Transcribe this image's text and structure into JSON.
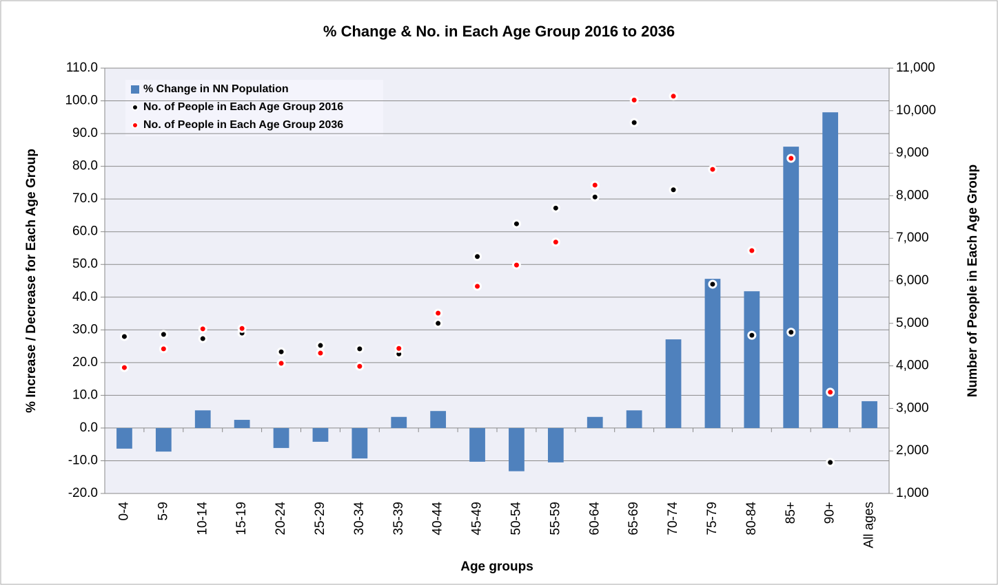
{
  "chart_data": {
    "type": "bar",
    "title": "% Change & No. in Each Age Group 2016 to 2036",
    "x_label": "Age groups",
    "y_label": "% Increase / Decrease for Each Age Group",
    "y2_label": "Number of People in Each Age Group",
    "categories": [
      "0-4",
      "5-9",
      "10-14",
      "15-19",
      "20-24",
      "25-29",
      "30-34",
      "35-39",
      "40-44",
      "45-49",
      "50-54",
      "55-59",
      "60-64",
      "65-69",
      "70-74",
      "75-79",
      "80-84",
      "85+",
      "90+",
      "All ages"
    ],
    "series": [
      {
        "name": "% Change in NN Population",
        "type": "bar",
        "axis": "y",
        "color": "#4f81bd",
        "values": [
          -6.3,
          -7.2,
          5.4,
          2.5,
          -6.1,
          -4.2,
          -9.3,
          3.4,
          5.2,
          -10.3,
          -13.2,
          -10.5,
          3.4,
          5.4,
          27.1,
          45.6,
          41.8,
          86.0,
          96.5,
          8.2
        ]
      },
      {
        "name": "No. of People in Each Age Group  2016",
        "type": "scatter",
        "axis": "y2",
        "color": "#000000",
        "values": [
          4690,
          4740,
          4640,
          4770,
          4330,
          4480,
          4400,
          4280,
          5000,
          6570,
          7340,
          7710,
          7970,
          9720,
          8140,
          5920,
          4720,
          4790,
          1730,
          null
        ]
      },
      {
        "name": "No. of People in Each Age Group 2036",
        "type": "scatter",
        "axis": "y2",
        "color": "#ff0000",
        "values": [
          3960,
          4400,
          4870,
          4880,
          4060,
          4300,
          3990,
          4410,
          5240,
          5870,
          6370,
          6910,
          8250,
          10250,
          10340,
          8620,
          6710,
          8880,
          3380,
          null
        ]
      }
    ],
    "ylim": [
      -20,
      110
    ],
    "yticks": [
      {
        "value": -20,
        "label": "-20.0"
      },
      {
        "value": -10,
        "label": "-10.0"
      },
      {
        "value": 0,
        "label": "0.0"
      },
      {
        "value": 10,
        "label": "10.0"
      },
      {
        "value": 20,
        "label": "20.0"
      },
      {
        "value": 30,
        "label": "30.0"
      },
      {
        "value": 40,
        "label": "40.0"
      },
      {
        "value": 50,
        "label": "50.0"
      },
      {
        "value": 60,
        "label": "60.0"
      },
      {
        "value": 70,
        "label": "70.0"
      },
      {
        "value": 80,
        "label": "80.0"
      },
      {
        "value": 90,
        "label": "90.0"
      },
      {
        "value": 100,
        "label": "100.0"
      },
      {
        "value": 110,
        "label": "110.0"
      }
    ],
    "y2lim": [
      1000,
      11000
    ],
    "y2ticks": [
      {
        "value": 1000,
        "label": "1,000"
      },
      {
        "value": 2000,
        "label": "2,000"
      },
      {
        "value": 3000,
        "label": "3,000"
      },
      {
        "value": 4000,
        "label": "4,000"
      },
      {
        "value": 5000,
        "label": "5,000"
      },
      {
        "value": 6000,
        "label": "6,000"
      },
      {
        "value": 7000,
        "label": "7,000"
      },
      {
        "value": 8000,
        "label": "8,000"
      },
      {
        "value": 9000,
        "label": "9,000"
      },
      {
        "value": 10000,
        "label": "10,000"
      },
      {
        "value": 11000,
        "label": "11,000"
      }
    ],
    "grid": true,
    "legend": "upper left"
  }
}
